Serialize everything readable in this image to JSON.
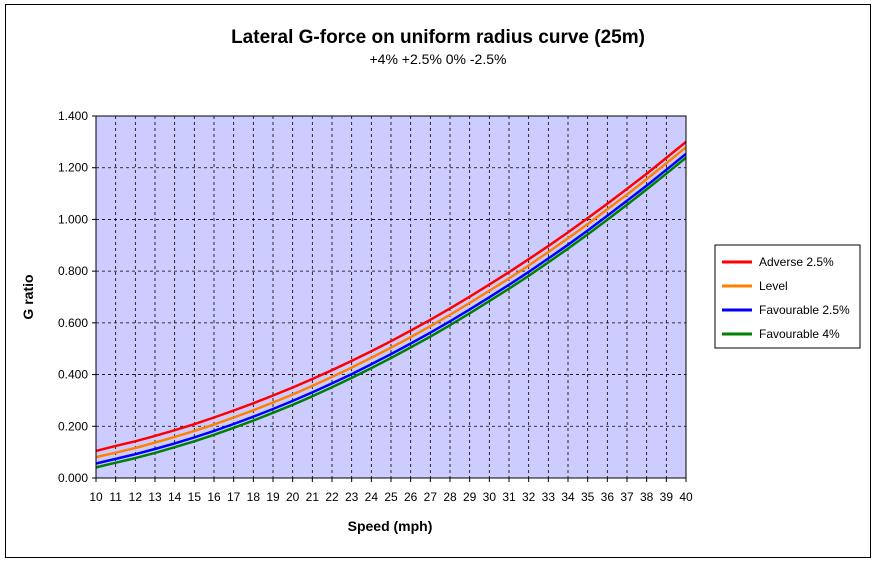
{
  "chart_data": {
    "type": "line",
    "title": "Lateral G-force on uniform radius curve (25m)",
    "subtitle": "+4% +2.5% 0% -2.5%",
    "xlabel": "Speed (mph)",
    "ylabel": "G ratio",
    "x": [
      10,
      11,
      12,
      13,
      14,
      15,
      16,
      17,
      18,
      19,
      20,
      21,
      22,
      23,
      24,
      25,
      26,
      27,
      28,
      29,
      30,
      31,
      32,
      33,
      34,
      35,
      36,
      37,
      38,
      39,
      40
    ],
    "xlim": [
      10,
      40
    ],
    "ylim": [
      0,
      1.4
    ],
    "yticks": [
      "0.000",
      "0.200",
      "0.400",
      "0.600",
      "0.800",
      "1.000",
      "1.200",
      "1.400"
    ],
    "grid": true,
    "plot_background": "#ccccff",
    "legend_position": "right",
    "series": [
      {
        "name": "Adverse 2.5%",
        "color": "#ff0000",
        "values": [
          0.105,
          0.124,
          0.142,
          0.163,
          0.185,
          0.208,
          0.234,
          0.261,
          0.289,
          0.319,
          0.35,
          0.383,
          0.417,
          0.453,
          0.49,
          0.529,
          0.57,
          0.612,
          0.656,
          0.701,
          0.748,
          0.796,
          0.846,
          0.897,
          0.95,
          1.005,
          1.061,
          1.118,
          1.177,
          1.238,
          1.3
        ]
      },
      {
        "name": "Level",
        "color": "#ff8000",
        "values": [
          0.081,
          0.098,
          0.116,
          0.137,
          0.159,
          0.182,
          0.207,
          0.234,
          0.262,
          0.292,
          0.323,
          0.356,
          0.391,
          0.427,
          0.465,
          0.504,
          0.545,
          0.587,
          0.631,
          0.677,
          0.724,
          0.772,
          0.822,
          0.874,
          0.927,
          0.982,
          1.039,
          1.096,
          1.156,
          1.217,
          1.279
        ]
      },
      {
        "name": "Favourable 2.5%",
        "color": "#0000ff",
        "values": [
          0.056,
          0.074,
          0.092,
          0.112,
          0.134,
          0.157,
          0.182,
          0.209,
          0.237,
          0.267,
          0.298,
          0.331,
          0.366,
          0.402,
          0.44,
          0.479,
          0.52,
          0.562,
          0.606,
          0.652,
          0.699,
          0.747,
          0.797,
          0.849,
          0.902,
          0.957,
          1.014,
          1.072,
          1.131,
          1.192,
          1.254
        ]
      },
      {
        "name": "Favourable 4%",
        "color": "#008000",
        "values": [
          0.041,
          0.059,
          0.077,
          0.097,
          0.119,
          0.142,
          0.167,
          0.194,
          0.222,
          0.252,
          0.283,
          0.316,
          0.351,
          0.387,
          0.425,
          0.464,
          0.505,
          0.547,
          0.591,
          0.637,
          0.684,
          0.732,
          0.782,
          0.834,
          0.887,
          0.942,
          0.999,
          1.057,
          1.116,
          1.177,
          1.239
        ]
      }
    ]
  }
}
